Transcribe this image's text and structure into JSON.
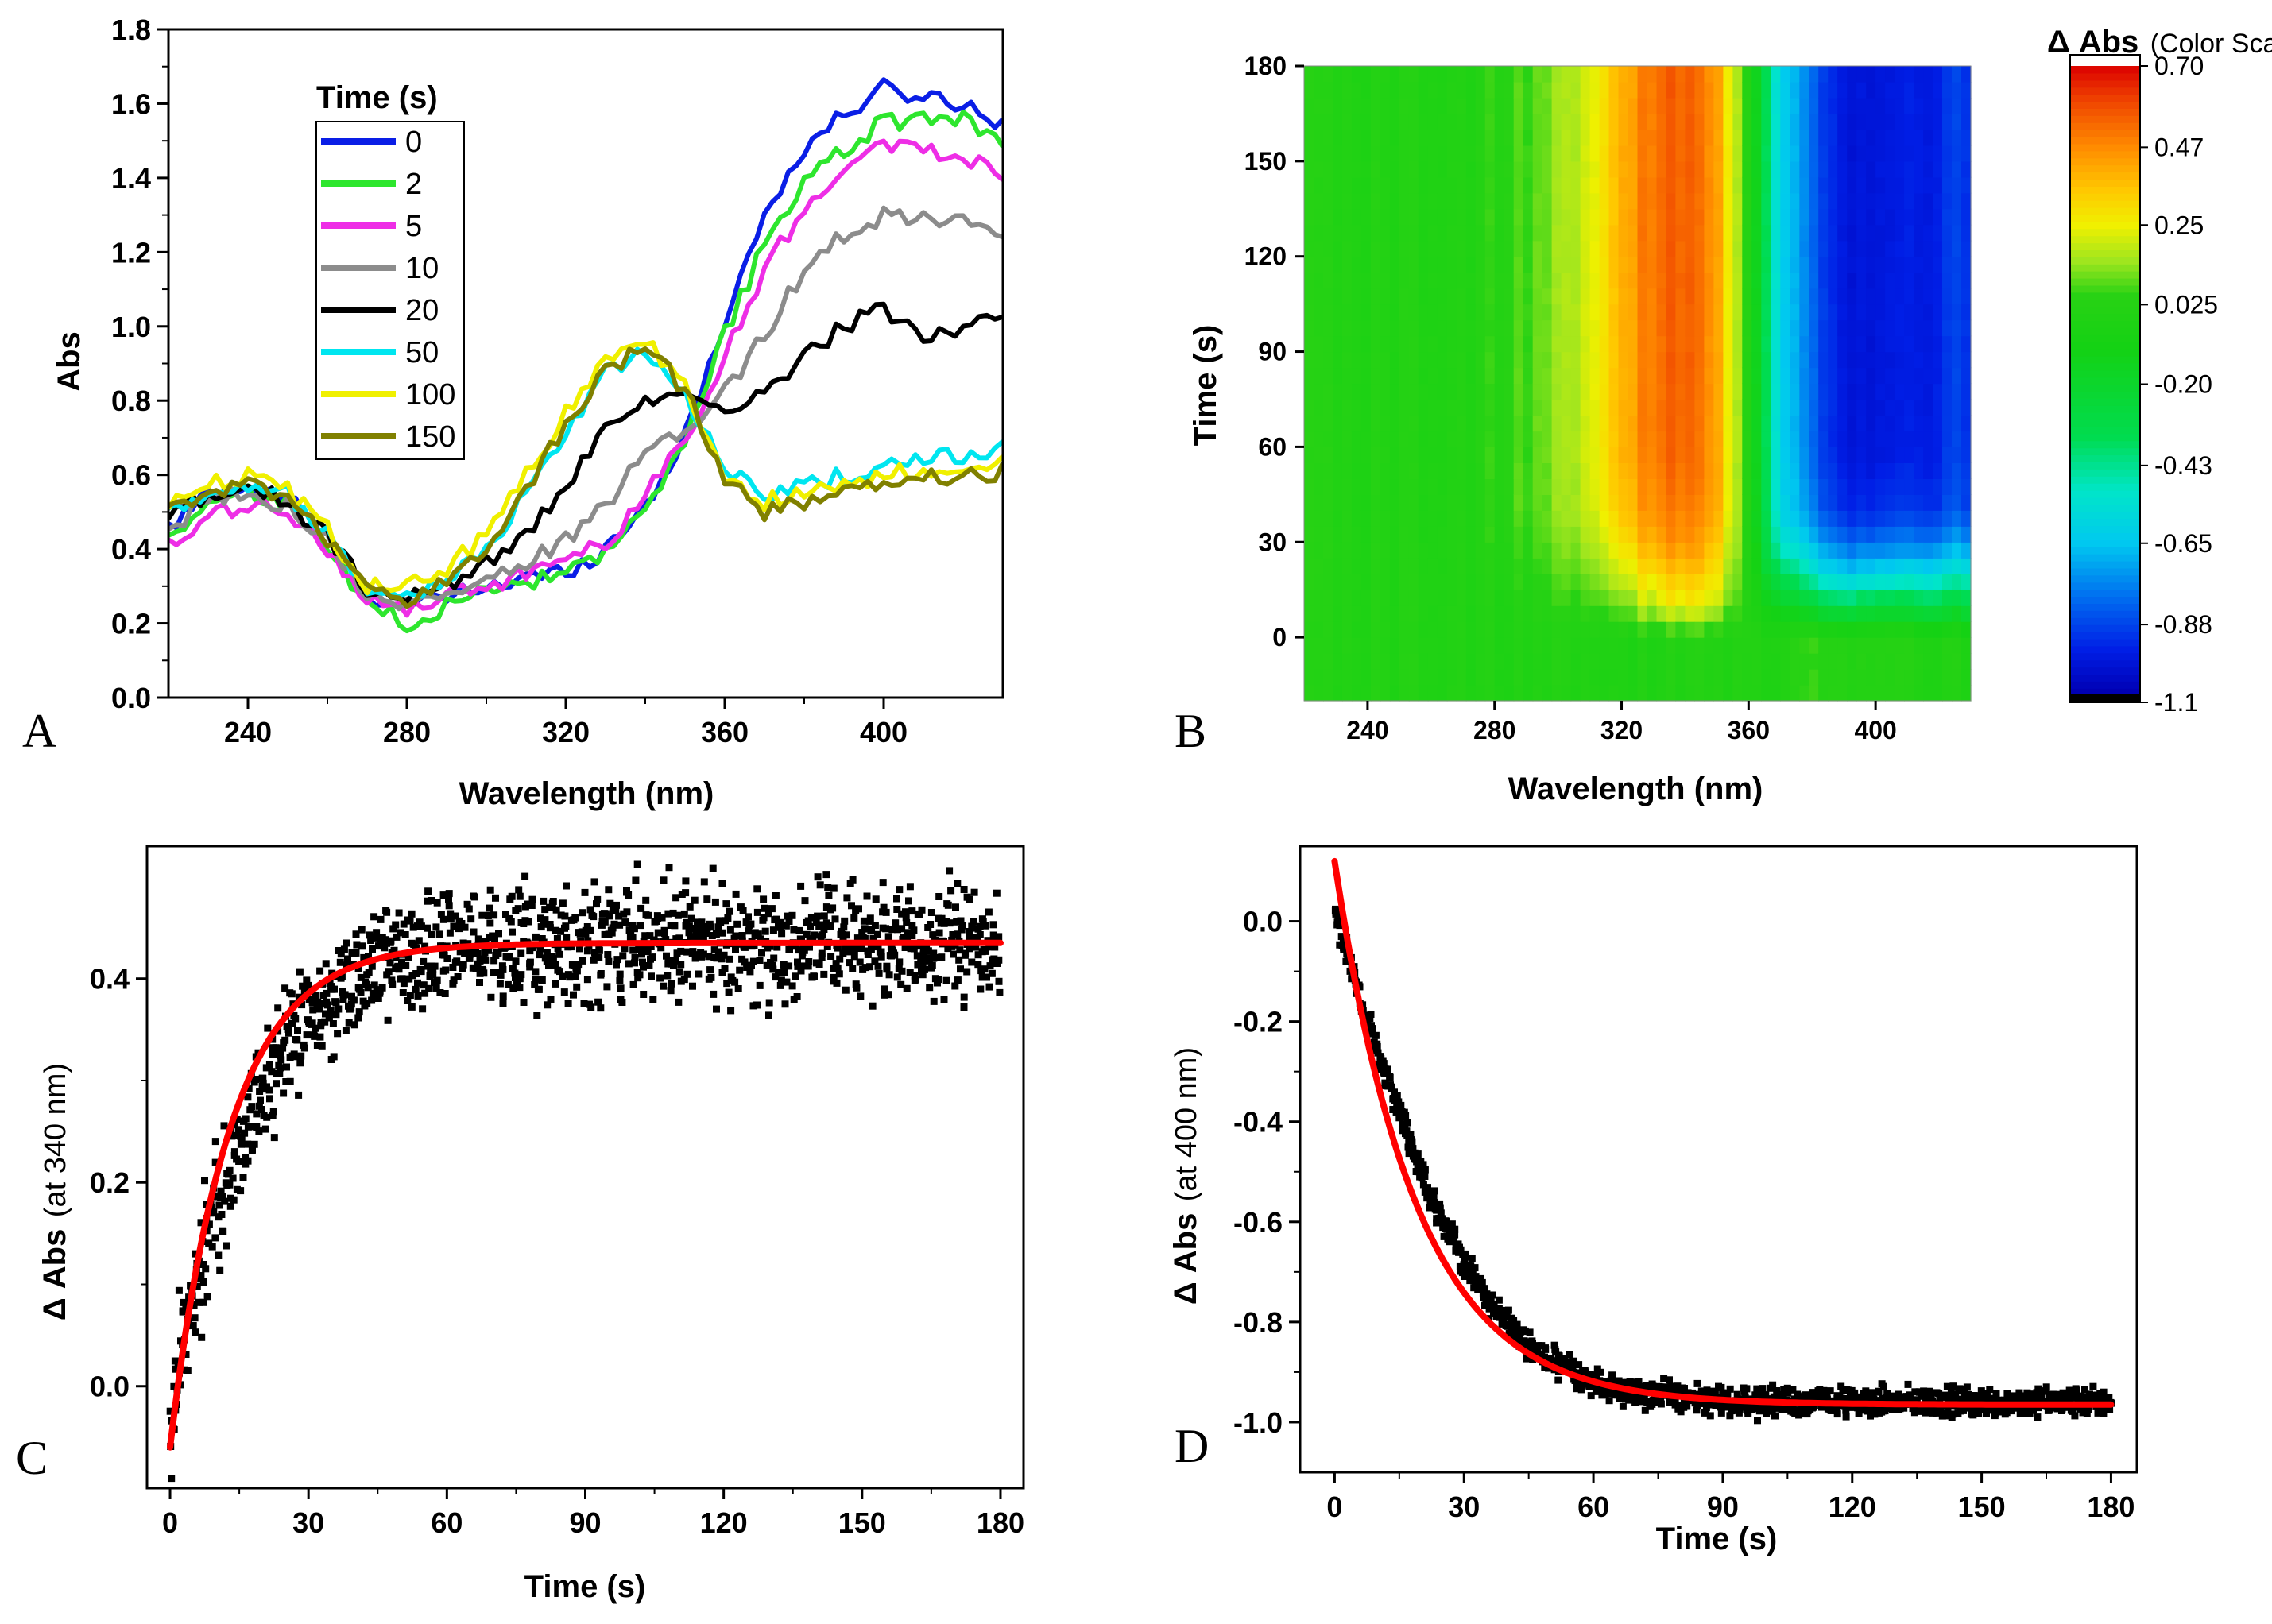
{
  "chart_data": [
    {
      "panel": "A",
      "type": "line",
      "xlabel": "Wavelength (nm)",
      "ylabel": "Abs",
      "xlim": [
        220,
        430
      ],
      "ylim": [
        0.0,
        1.8
      ],
      "xticks": [
        240,
        280,
        320,
        360,
        400
      ],
      "yticks": [
        0.0,
        0.2,
        0.4,
        0.6,
        0.8,
        1.0,
        1.2,
        1.4,
        1.6,
        1.8
      ],
      "xtick_labels": [
        "240",
        "280",
        "320",
        "360",
        "400"
      ],
      "ytick_labels": [
        "0.0",
        "0.2",
        "0.4",
        "0.6",
        "0.8",
        "1.0",
        "1.2",
        "1.4",
        "1.6",
        "1.8"
      ],
      "legend_title": "Time (s)",
      "legend_position": "top-left",
      "x": [
        220,
        230,
        240,
        250,
        260,
        270,
        280,
        290,
        300,
        310,
        320,
        330,
        340,
        350,
        360,
        370,
        380,
        390,
        400,
        410,
        420,
        430
      ],
      "series": [
        {
          "name": "0",
          "color": "#0a1ee6",
          "values": [
            0.45,
            0.55,
            0.57,
            0.54,
            0.43,
            0.28,
            0.24,
            0.27,
            0.3,
            0.32,
            0.34,
            0.4,
            0.52,
            0.7,
            1.02,
            1.3,
            1.48,
            1.57,
            1.64,
            1.62,
            1.6,
            1.55
          ]
        },
        {
          "name": "2",
          "color": "#2ee62e",
          "values": [
            0.44,
            0.52,
            0.55,
            0.52,
            0.4,
            0.26,
            0.2,
            0.25,
            0.28,
            0.31,
            0.33,
            0.38,
            0.5,
            0.68,
            0.98,
            1.22,
            1.38,
            1.48,
            1.55,
            1.55,
            1.56,
            1.5
          ]
        },
        {
          "name": "5",
          "color": "#ee2ee6",
          "values": [
            0.4,
            0.48,
            0.52,
            0.5,
            0.4,
            0.27,
            0.23,
            0.27,
            0.3,
            0.33,
            0.36,
            0.42,
            0.54,
            0.7,
            0.92,
            1.15,
            1.32,
            1.43,
            1.5,
            1.47,
            1.45,
            1.42
          ]
        },
        {
          "name": "10",
          "color": "#8c8c8c",
          "values": [
            0.45,
            0.53,
            0.55,
            0.52,
            0.42,
            0.28,
            0.25,
            0.28,
            0.32,
            0.36,
            0.42,
            0.52,
            0.65,
            0.72,
            0.82,
            0.98,
            1.15,
            1.25,
            1.3,
            1.3,
            1.28,
            1.24
          ]
        },
        {
          "name": "20",
          "color": "#000000",
          "values": [
            0.5,
            0.55,
            0.56,
            0.53,
            0.43,
            0.29,
            0.26,
            0.3,
            0.36,
            0.44,
            0.56,
            0.72,
            0.8,
            0.8,
            0.76,
            0.82,
            0.92,
            1.0,
            1.05,
            0.98,
            1.0,
            1.03
          ]
        },
        {
          "name": "50",
          "color": "#00e6f0",
          "values": [
            0.5,
            0.56,
            0.58,
            0.55,
            0.45,
            0.3,
            0.28,
            0.32,
            0.4,
            0.55,
            0.72,
            0.87,
            0.93,
            0.82,
            0.62,
            0.55,
            0.57,
            0.6,
            0.62,
            0.64,
            0.65,
            0.67
          ]
        },
        {
          "name": "100",
          "color": "#f0f000",
          "values": [
            0.52,
            0.58,
            0.6,
            0.56,
            0.45,
            0.3,
            0.3,
            0.35,
            0.44,
            0.6,
            0.77,
            0.9,
            0.97,
            0.84,
            0.6,
            0.53,
            0.54,
            0.58,
            0.6,
            0.62,
            0.62,
            0.63
          ]
        },
        {
          "name": "150",
          "color": "#808000",
          "values": [
            0.5,
            0.55,
            0.57,
            0.54,
            0.43,
            0.28,
            0.27,
            0.32,
            0.4,
            0.56,
            0.74,
            0.88,
            0.95,
            0.83,
            0.6,
            0.5,
            0.52,
            0.55,
            0.57,
            0.59,
            0.6,
            0.61
          ]
        }
      ]
    },
    {
      "panel": "B",
      "type": "heatmap",
      "xlabel": "Wavelength (nm)",
      "ylabel": "Time (s)",
      "xlim": [
        220,
        430
      ],
      "ylim": [
        -20,
        180
      ],
      "xticks": [
        240,
        280,
        320,
        360,
        400
      ],
      "yticks": [
        0,
        30,
        60,
        90,
        120,
        150,
        180
      ],
      "xtick_labels": [
        "240",
        "280",
        "320",
        "360",
        "400"
      ],
      "ytick_labels": [
        "0",
        "30",
        "60",
        "90",
        "120",
        "150",
        "180"
      ],
      "colorbar_title_main": "Δ Abs",
      "colorbar_title_sub": "(Color Scale)",
      "colorbar_ticks": [
        0.7,
        0.47,
        0.25,
        0.025,
        -0.2,
        -0.43,
        -0.65,
        -0.88,
        -1.1
      ],
      "colorbar_tick_labels": [
        "0.70",
        "0.47",
        "0.25",
        "0.025",
        "-0.20",
        "-0.43",
        "-0.65",
        "-0.88",
        "-1.1"
      ],
      "colorbar_range": [
        -1.1,
        0.7
      ],
      "x": [
        220,
        230,
        240,
        250,
        260,
        270,
        280,
        290,
        300,
        310,
        320,
        330,
        340,
        350,
        360,
        370,
        380,
        390,
        400,
        410,
        420,
        430
      ],
      "y": [
        -20,
        -10,
        0,
        10,
        20,
        30,
        40,
        60,
        90,
        120,
        150,
        180
      ],
      "z": [
        [
          0.0,
          0.0,
          0.0,
          0.0,
          0.0,
          0.0,
          0.0,
          0.0,
          0.0,
          0.0,
          0.0,
          0.0,
          0.0,
          0.0,
          0.0,
          0.0,
          0.05,
          0.05,
          0.0,
          0.0,
          0.0,
          0.0
        ],
        [
          0.0,
          0.0,
          0.0,
          0.0,
          0.0,
          0.0,
          0.0,
          0.0,
          0.0,
          0.0,
          0.0,
          0.0,
          0.0,
          0.0,
          0.0,
          0.0,
          0.05,
          0.05,
          0.0,
          0.0,
          0.0,
          0.0
        ],
        [
          0.0,
          0.0,
          0.0,
          0.0,
          0.0,
          0.0,
          0.0,
          0.0,
          0.0,
          0.0,
          0.0,
          0.0,
          0.0,
          0.0,
          0.0,
          0.0,
          0.05,
          0.05,
          0.0,
          0.0,
          0.0,
          0.0
        ],
        [
          0.02,
          0.0,
          0.0,
          0.0,
          0.0,
          0.0,
          0.0,
          0.02,
          0.03,
          0.06,
          0.12,
          0.2,
          0.25,
          0.18,
          0.0,
          -0.15,
          -0.25,
          -0.3,
          -0.3,
          -0.3,
          -0.28,
          -0.25
        ],
        [
          0.02,
          0.0,
          0.0,
          0.0,
          0.0,
          0.0,
          0.02,
          0.04,
          0.07,
          0.12,
          0.22,
          0.32,
          0.36,
          0.28,
          0.0,
          -0.35,
          -0.5,
          -0.6,
          -0.62,
          -0.6,
          -0.55,
          -0.5
        ],
        [
          0.02,
          0.0,
          0.0,
          0.0,
          0.0,
          0.0,
          0.03,
          0.06,
          0.1,
          0.16,
          0.3,
          0.42,
          0.45,
          0.35,
          0.0,
          -0.5,
          -0.68,
          -0.78,
          -0.82,
          -0.8,
          -0.75,
          -0.7
        ],
        [
          0.02,
          0.0,
          0.0,
          0.0,
          0.0,
          0.0,
          0.04,
          0.08,
          0.12,
          0.2,
          0.36,
          0.48,
          0.5,
          0.4,
          0.0,
          -0.58,
          -0.78,
          -0.9,
          -0.95,
          -0.92,
          -0.88,
          -0.85
        ],
        [
          0.02,
          0.0,
          0.0,
          0.0,
          0.0,
          0.0,
          0.04,
          0.08,
          0.13,
          0.22,
          0.4,
          0.52,
          0.54,
          0.42,
          0.0,
          -0.6,
          -0.82,
          -0.95,
          -1.0,
          -0.98,
          -0.92,
          -0.88
        ],
        [
          0.02,
          0.0,
          0.0,
          0.0,
          0.0,
          0.0,
          0.04,
          0.08,
          0.13,
          0.22,
          0.4,
          0.52,
          0.55,
          0.42,
          0.0,
          -0.6,
          -0.82,
          -0.95,
          -1.0,
          -0.98,
          -0.92,
          -0.88
        ],
        [
          0.02,
          0.0,
          0.0,
          0.0,
          0.0,
          0.0,
          0.04,
          0.08,
          0.13,
          0.22,
          0.41,
          0.53,
          0.55,
          0.43,
          0.0,
          -0.6,
          -0.82,
          -0.95,
          -1.0,
          -0.98,
          -0.92,
          -0.88
        ],
        [
          0.02,
          0.0,
          0.0,
          0.0,
          0.0,
          0.0,
          0.04,
          0.08,
          0.13,
          0.22,
          0.41,
          0.53,
          0.55,
          0.43,
          0.0,
          -0.6,
          -0.82,
          -0.95,
          -1.0,
          -0.98,
          -0.92,
          -0.88
        ],
        [
          0.02,
          0.0,
          0.0,
          0.0,
          0.0,
          0.0,
          0.04,
          0.08,
          0.13,
          0.22,
          0.41,
          0.53,
          0.55,
          0.43,
          0.0,
          -0.6,
          -0.82,
          -0.95,
          -1.0,
          -0.98,
          -0.92,
          -0.88
        ]
      ]
    },
    {
      "panel": "C",
      "type": "scatter",
      "xlabel": "Time (s)",
      "ylabel_main": "Δ Abs",
      "ylabel_sub": "(at 340 nm)",
      "xlim": [
        -5,
        185
      ],
      "ylim": [
        -0.1,
        0.53
      ],
      "xticks": [
        0,
        30,
        60,
        90,
        120,
        150,
        180
      ],
      "yticks": [
        0.0,
        0.2,
        0.4
      ],
      "xtick_labels": [
        "0",
        "30",
        "60",
        "90",
        "120",
        "150",
        "180"
      ],
      "ytick_labels": [
        "0.0",
        "0.2",
        "0.4"
      ],
      "x": [
        0,
        2,
        4,
        6,
        8,
        10,
        12,
        15,
        18,
        21,
        25,
        30,
        35,
        40,
        45,
        50,
        55,
        60,
        70,
        80,
        90,
        100,
        110,
        120,
        130,
        140,
        150,
        160,
        170,
        180
      ],
      "values": [
        -0.05,
        0.02,
        0.07,
        0.1,
        0.14,
        0.17,
        0.19,
        0.24,
        0.27,
        0.3,
        0.33,
        0.36,
        0.38,
        0.4,
        0.41,
        0.42,
        0.42,
        0.43,
        0.43,
        0.44,
        0.43,
        0.44,
        0.43,
        0.44,
        0.43,
        0.44,
        0.44,
        0.43,
        0.44,
        0.43
      ],
      "noise_band": 0.04,
      "fit": {
        "name": "exponential fit",
        "color": "#ff0000",
        "y0": -0.06,
        "yinf": 0.435,
        "tau": 13
      },
      "marker_color": "#000000"
    },
    {
      "panel": "D",
      "type": "scatter",
      "xlabel": "Time (s)",
      "ylabel_main": "Δ Abs",
      "ylabel_sub": "(at 400 nm)",
      "xlim": [
        -8,
        186
      ],
      "ylim": [
        -1.1,
        0.15
      ],
      "xticks": [
        0,
        30,
        60,
        90,
        120,
        150,
        180
      ],
      "yticks": [
        0.0,
        -0.2,
        -0.4,
        -0.6,
        -0.8,
        -1.0
      ],
      "xtick_labels": [
        "0",
        "30",
        "60",
        "90",
        "120",
        "150",
        "180"
      ],
      "ytick_labels": [
        "0.0",
        "-0.2",
        "-0.4",
        "-0.6",
        "-0.8",
        "-1.0"
      ],
      "x": [
        0,
        2,
        4,
        6,
        8,
        10,
        12,
        15,
        18,
        21,
        25,
        30,
        35,
        40,
        45,
        50,
        55,
        60,
        70,
        80,
        90,
        100,
        110,
        120,
        130,
        140,
        150,
        160,
        170,
        180
      ],
      "values": [
        0.03,
        -0.04,
        -0.09,
        -0.15,
        -0.21,
        -0.26,
        -0.31,
        -0.38,
        -0.45,
        -0.52,
        -0.59,
        -0.68,
        -0.75,
        -0.8,
        -0.85,
        -0.88,
        -0.9,
        -0.92,
        -0.94,
        -0.95,
        -0.96,
        -0.96,
        -0.96,
        -0.96,
        -0.96,
        -0.96,
        -0.96,
        -0.96,
        -0.96,
        -0.96
      ],
      "noise_band": 0.02,
      "fit": {
        "name": "exponential fit",
        "color": "#ff0000",
        "y0": 0.12,
        "yinf": -0.965,
        "tau": 19
      },
      "marker_color": "#000000"
    }
  ]
}
